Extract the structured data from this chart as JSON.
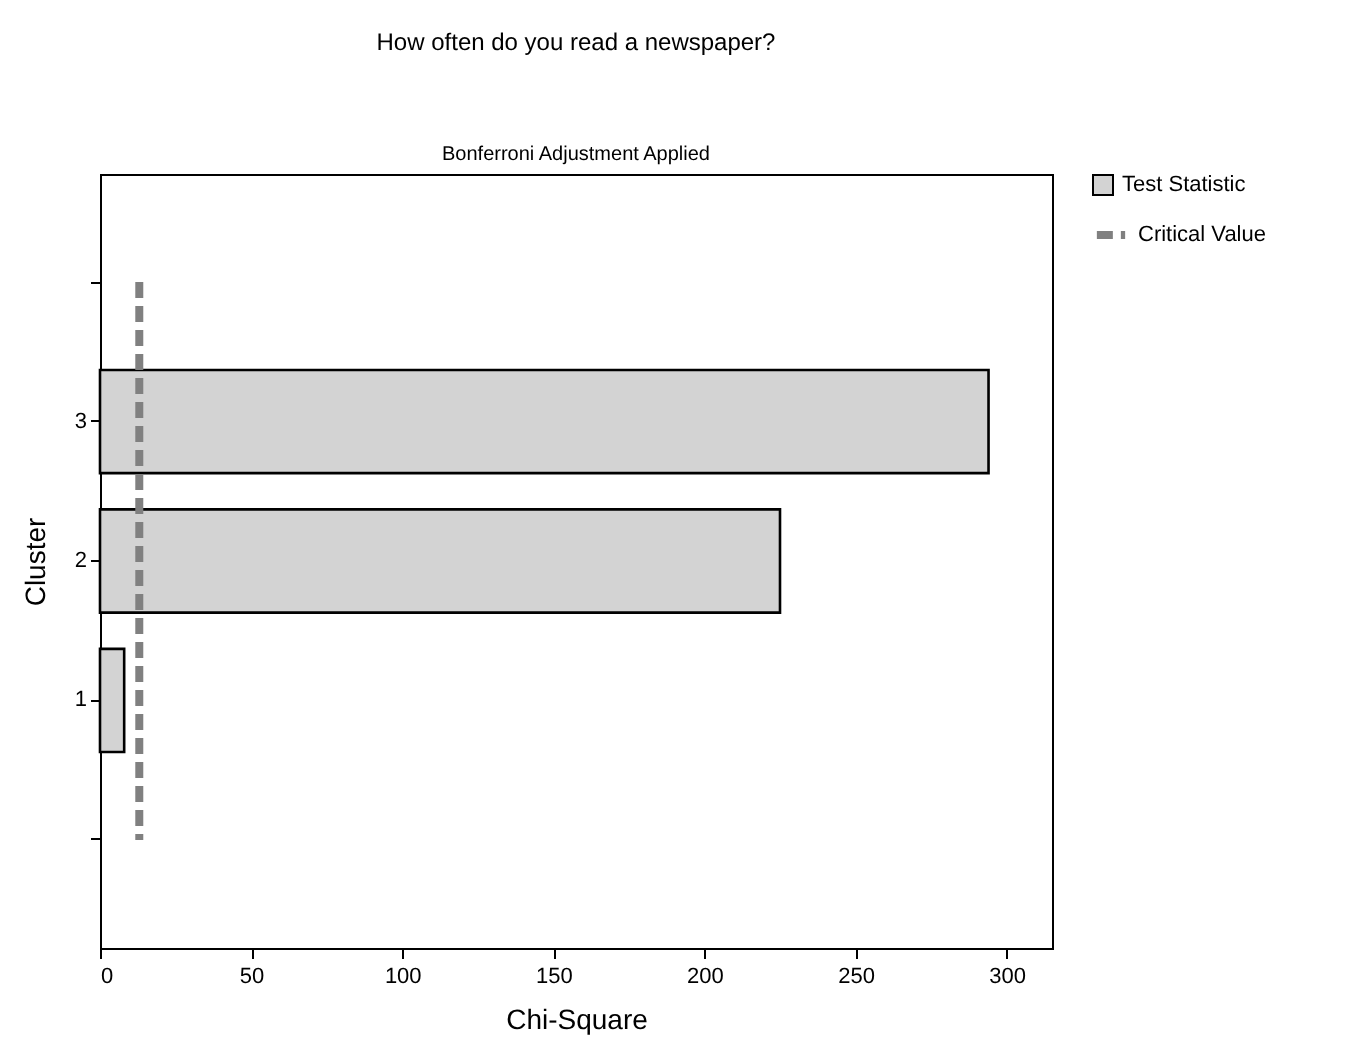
{
  "chart_data": {
    "type": "bar",
    "orientation": "horizontal",
    "title": "How often do you read a newspaper?",
    "subtitle": "Bonferroni Adjustment Applied",
    "xlabel": "Chi-Square",
    "ylabel": "Cluster",
    "categories": [
      null,
      "3",
      "2",
      "1",
      null
    ],
    "series": [
      {
        "name": "Test Statistic",
        "color": "#d3d3d3",
        "values": [
          null,
          294,
          225,
          8,
          null
        ]
      }
    ],
    "xlim": [
      0,
      315
    ],
    "xticks": [
      0,
      50,
      100,
      150,
      200,
      250,
      300
    ],
    "ref_lines": [
      {
        "axis": "x",
        "value": 13,
        "label": "Critical Value",
        "color": "#808080",
        "line_style": "dashed"
      }
    ],
    "legend": "top right",
    "grid": false
  }
}
